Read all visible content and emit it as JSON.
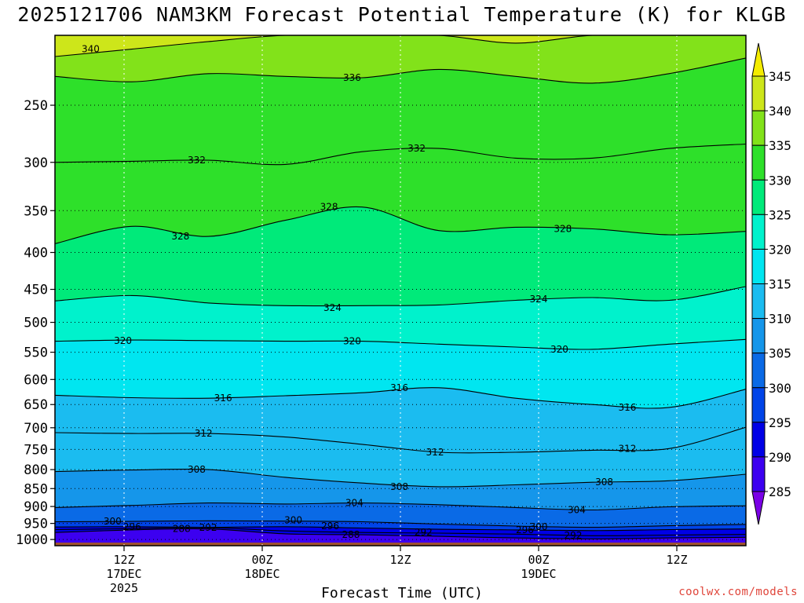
{
  "page": {
    "title": "2025121706 NAM3KM Forecast Potential Temperature (K) for KLGB",
    "credit": "coolwx.com/models"
  },
  "chart_data": {
    "type": "contour",
    "title": "2025121706 NAM3KM Forecast Potential Temperature (K) for KLGB",
    "xlabel": "Forecast Time (UTC)",
    "ylabel": "",
    "x_tick_labels": [
      {
        "time": "12Z",
        "day": "17DEC",
        "year": "2025"
      },
      {
        "time": "00Z",
        "day": "18DEC",
        "year": ""
      },
      {
        "time": "12Z",
        "day": "",
        "year": ""
      },
      {
        "time": "00Z",
        "day": "19DEC",
        "year": ""
      },
      {
        "time": "12Z",
        "day": "",
        "year": ""
      }
    ],
    "x_tick_hours": [
      6,
      18,
      30,
      42,
      54
    ],
    "x_range_hours": [
      0,
      60
    ],
    "y_ticks_hpa": [
      250,
      300,
      350,
      400,
      450,
      500,
      550,
      600,
      650,
      700,
      750,
      800,
      850,
      900,
      950,
      1000
    ],
    "y_range_hpa": [
      200,
      1020
    ],
    "y_scale": "log-pressure",
    "colorbar_levels": [
      285,
      290,
      295,
      300,
      305,
      310,
      315,
      320,
      325,
      330,
      335,
      340,
      345
    ],
    "colorbar_colors": [
      "#7a00e6",
      "#3c00f0",
      "#0000e6",
      "#0044e8",
      "#0a6ae6",
      "#1596ea",
      "#1bbcf0",
      "#00e6f0",
      "#00f2cc",
      "#00ea7a",
      "#2ee02a",
      "#82e21a",
      "#cde61a",
      "#f4ec00"
    ],
    "colorbar_labels": [
      "285",
      "290",
      "295",
      "300",
      "305",
      "310",
      "315",
      "320",
      "325",
      "330",
      "335",
      "340",
      "345"
    ],
    "ground_color": "#a0522d",
    "grid": true,
    "contour_levels": [
      288,
      292,
      296,
      300,
      304,
      308,
      312,
      316,
      320,
      324,
      328,
      332,
      336,
      340
    ],
    "contour_labels": [
      {
        "value": "340",
        "hour": 3.1,
        "hpa": 209
      },
      {
        "value": "336",
        "hour": 25.8,
        "hpa": 229
      },
      {
        "value": "332",
        "hour": 12.3,
        "hpa": 298
      },
      {
        "value": "332",
        "hour": 31.4,
        "hpa": 287
      },
      {
        "value": "328",
        "hour": 10.9,
        "hpa": 380
      },
      {
        "value": "328",
        "hour": 23.8,
        "hpa": 346
      },
      {
        "value": "328",
        "hour": 44.1,
        "hpa": 371
      },
      {
        "value": "324",
        "hour": 24.1,
        "hpa": 477
      },
      {
        "value": "324",
        "hour": 42.0,
        "hpa": 464
      },
      {
        "value": "320",
        "hour": 5.9,
        "hpa": 530
      },
      {
        "value": "320",
        "hour": 25.8,
        "hpa": 531
      },
      {
        "value": "320",
        "hour": 43.8,
        "hpa": 545
      },
      {
        "value": "316",
        "hour": 14.6,
        "hpa": 637
      },
      {
        "value": "316",
        "hour": 29.9,
        "hpa": 616
      },
      {
        "value": "316",
        "hour": 49.7,
        "hpa": 656
      },
      {
        "value": "312",
        "hour": 12.9,
        "hpa": 713
      },
      {
        "value": "312",
        "hour": 33.0,
        "hpa": 757
      },
      {
        "value": "312",
        "hour": 49.7,
        "hpa": 748
      },
      {
        "value": "308",
        "hour": 12.3,
        "hpa": 800
      },
      {
        "value": "308",
        "hour": 29.9,
        "hpa": 845
      },
      {
        "value": "308",
        "hour": 47.7,
        "hpa": 833
      },
      {
        "value": "304",
        "hour": 26.0,
        "hpa": 890
      },
      {
        "value": "304",
        "hour": 45.3,
        "hpa": 910
      },
      {
        "value": "300",
        "hour": 5.0,
        "hpa": 944
      },
      {
        "value": "300",
        "hour": 20.7,
        "hpa": 940
      },
      {
        "value": "300",
        "hour": 42.0,
        "hpa": 960
      },
      {
        "value": "296",
        "hour": 6.7,
        "hpa": 960
      },
      {
        "value": "296",
        "hour": 23.9,
        "hpa": 958
      },
      {
        "value": "296",
        "hour": 40.8,
        "hpa": 970
      },
      {
        "value": "292",
        "hour": 13.3,
        "hpa": 963
      },
      {
        "value": "292",
        "hour": 32.0,
        "hpa": 978
      },
      {
        "value": "292",
        "hour": 45.0,
        "hpa": 987
      },
      {
        "value": "288",
        "hour": 11.0,
        "hpa": 966
      },
      {
        "value": "288",
        "hour": 25.7,
        "hpa": 985
      }
    ],
    "isentropes": [
      {
        "level": 340,
        "hpa": [
          214,
          209,
          204,
          200,
          200,
          200,
          205,
          200,
          200,
          200
        ]
      },
      {
        "level": 336,
        "hpa": [
          228,
          232,
          226,
          228,
          229,
          223,
          228,
          233,
          226,
          215
        ]
      },
      {
        "level": 332,
        "hpa": [
          300,
          299,
          298,
          302,
          290,
          287,
          296,
          296,
          287,
          283
        ]
      },
      {
        "level": 328,
        "hpa": [
          389,
          368,
          380,
          361,
          346,
          373,
          369,
          371,
          378,
          374
        ]
      },
      {
        "level": 324,
        "hpa": [
          467,
          459,
          470,
          474,
          474,
          473,
          466,
          462,
          466,
          446
        ]
      },
      {
        "level": 320,
        "hpa": [
          531,
          529,
          530,
          531,
          531,
          536,
          541,
          545,
          536,
          528
        ]
      },
      {
        "level": 316,
        "hpa": [
          631,
          636,
          637,
          632,
          626,
          616,
          637,
          650,
          656,
          619
        ]
      },
      {
        "level": 312,
        "hpa": [
          711,
          713,
          713,
          721,
          738,
          757,
          757,
          752,
          748,
          699
        ]
      },
      {
        "level": 308,
        "hpa": [
          805,
          801,
          800,
          820,
          835,
          845,
          840,
          833,
          829,
          812
        ]
      },
      {
        "level": 304,
        "hpa": [
          903,
          897,
          890,
          893,
          890,
          895,
          903,
          910,
          901,
          898
        ]
      },
      {
        "level": 300,
        "hpa": [
          945,
          944,
          942,
          943,
          945,
          952,
          958,
          962,
          957,
          953
        ]
      },
      {
        "level": 296,
        "hpa": [
          961,
          960,
          962,
          960,
          964,
          968,
          970,
          972,
          969,
          967
        ]
      },
      {
        "level": 292,
        "hpa": [
          969,
          966,
          963,
          973,
          978,
          980,
          983,
          988,
          986,
          984
        ]
      },
      {
        "level": 288,
        "hpa": [
          978,
          970,
          967,
          982,
          985,
          990,
          995,
          998,
          995,
          993
        ]
      }
    ]
  }
}
